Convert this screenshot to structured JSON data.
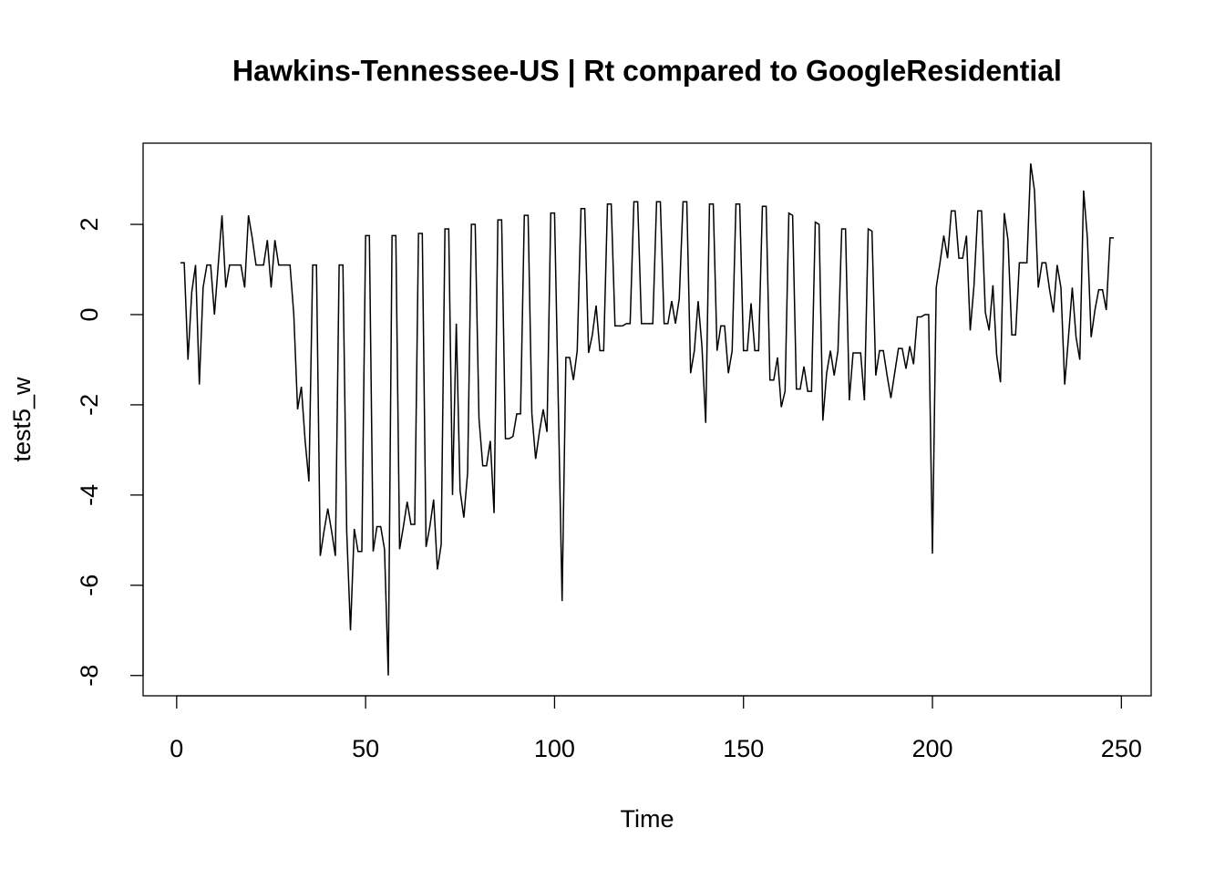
{
  "chart_data": {
    "type": "line",
    "title": "Hawkins-Tennessee-US | Rt compared to GoogleResidential",
    "x_label": "Time",
    "y_label": "test5_w",
    "color": "#000000",
    "xlim": [
      -8.88,
      257.88
    ],
    "ylim": [
      -8.45,
      3.8
    ],
    "xticks": [
      0,
      50,
      100,
      150,
      200,
      250
    ],
    "yticks": [
      -8,
      -6,
      -4,
      -2,
      0,
      2
    ],
    "x": [
      1,
      2,
      3,
      4,
      5,
      6,
      7,
      8,
      9,
      10,
      11,
      12,
      13,
      14,
      15,
      16,
      17,
      18,
      19,
      20,
      21,
      22,
      23,
      24,
      25,
      26,
      27,
      28,
      29,
      30,
      31,
      32,
      33,
      34,
      35,
      36,
      37,
      38,
      39,
      40,
      41,
      42,
      43,
      44,
      45,
      46,
      47,
      48,
      49,
      50,
      51,
      52,
      53,
      54,
      55,
      56,
      57,
      58,
      59,
      60,
      61,
      62,
      63,
      64,
      65,
      66,
      67,
      68,
      69,
      70,
      71,
      72,
      73,
      74,
      75,
      76,
      77,
      78,
      79,
      80,
      81,
      82,
      83,
      84,
      85,
      86,
      87,
      88,
      89,
      90,
      91,
      92,
      93,
      94,
      95,
      96,
      97,
      98,
      99,
      100,
      101,
      102,
      103,
      104,
      105,
      106,
      107,
      108,
      109,
      110,
      111,
      112,
      113,
      114,
      115,
      116,
      117,
      118,
      119,
      120,
      121,
      122,
      123,
      124,
      125,
      126,
      127,
      128,
      129,
      130,
      131,
      132,
      133,
      134,
      135,
      136,
      137,
      138,
      139,
      140,
      141,
      142,
      143,
      144,
      145,
      146,
      147,
      148,
      149,
      150,
      151,
      152,
      153,
      154,
      155,
      156,
      157,
      158,
      159,
      160,
      161,
      162,
      163,
      164,
      165,
      166,
      167,
      168,
      169,
      170,
      171,
      172,
      173,
      174,
      175,
      176,
      177,
      178,
      179,
      180,
      181,
      182,
      183,
      184,
      185,
      186,
      187,
      188,
      189,
      190,
      191,
      192,
      193,
      194,
      195,
      196,
      197,
      198,
      199,
      200,
      201,
      202,
      203,
      204,
      205,
      206,
      207,
      208,
      209,
      210,
      211,
      212,
      213,
      214,
      215,
      216,
      217,
      218,
      219,
      220,
      221,
      222,
      223,
      224,
      225,
      226,
      227,
      228,
      229,
      230,
      231,
      232,
      233,
      234,
      235,
      236,
      237,
      238,
      239,
      240,
      241,
      242,
      243,
      244,
      245,
      246,
      247,
      248
    ],
    "values": [
      1.15,
      1.15,
      -1.0,
      0.5,
      1.1,
      -1.55,
      0.6,
      1.1,
      1.1,
      0.0,
      1.1,
      2.2,
      0.6,
      1.1,
      1.1,
      1.1,
      1.1,
      0.6,
      2.2,
      1.7,
      1.1,
      1.1,
      1.1,
      1.65,
      0.6,
      1.65,
      1.1,
      1.1,
      1.1,
      1.1,
      0.0,
      -2.1,
      -1.6,
      -2.8,
      -3.7,
      1.1,
      1.1,
      -5.35,
      -4.8,
      -4.3,
      -4.8,
      -5.35,
      1.1,
      1.1,
      -4.8,
      -7.0,
      -4.75,
      -5.25,
      -5.25,
      1.75,
      1.75,
      -5.25,
      -4.7,
      -4.7,
      -5.2,
      -8.0,
      1.75,
      1.75,
      -5.2,
      -4.7,
      -4.15,
      -4.65,
      -4.65,
      1.8,
      1.8,
      -5.15,
      -4.7,
      -4.1,
      -5.65,
      -5.1,
      1.9,
      1.9,
      -4.0,
      -0.2,
      -3.9,
      -4.5,
      -3.5,
      2.0,
      2.0,
      -2.3,
      -3.35,
      -3.35,
      -2.8,
      -4.4,
      2.1,
      2.1,
      -2.75,
      -2.75,
      -2.7,
      -2.2,
      -2.2,
      2.2,
      2.2,
      -2.2,
      -3.2,
      -2.6,
      -2.1,
      -2.6,
      2.25,
      2.25,
      -2.0,
      -6.35,
      -0.95,
      -0.95,
      -1.45,
      -0.8,
      2.35,
      2.35,
      -0.85,
      -0.45,
      0.2,
      -0.8,
      -0.8,
      2.45,
      2.45,
      -0.25,
      -0.25,
      -0.25,
      -0.2,
      -0.2,
      2.5,
      2.5,
      -0.2,
      -0.2,
      -0.2,
      -0.2,
      2.5,
      2.5,
      -0.2,
      -0.2,
      0.3,
      -0.2,
      0.35,
      2.5,
      2.5,
      -1.3,
      -0.8,
      0.3,
      -0.7,
      -2.4,
      2.45,
      2.45,
      -0.8,
      -0.25,
      -0.25,
      -1.3,
      -0.8,
      2.45,
      2.45,
      -0.8,
      -0.8,
      0.25,
      -0.8,
      -0.8,
      2.4,
      2.4,
      -1.45,
      -1.45,
      -0.95,
      -2.05,
      -1.7,
      2.25,
      2.2,
      -1.65,
      -1.65,
      -1.15,
      -1.7,
      -1.7,
      2.05,
      2.0,
      -2.35,
      -1.3,
      -0.8,
      -1.35,
      -0.8,
      1.9,
      1.9,
      -1.9,
      -0.85,
      -0.85,
      -0.85,
      -1.9,
      1.9,
      1.85,
      -1.35,
      -0.8,
      -0.8,
      -1.35,
      -1.85,
      -1.3,
      -0.75,
      -0.75,
      -1.2,
      -0.7,
      -1.1,
      -0.05,
      -0.05,
      0.0,
      0.0,
      -5.3,
      0.6,
      1.15,
      1.75,
      1.25,
      2.3,
      2.3,
      1.25,
      1.25,
      1.75,
      -0.35,
      0.65,
      2.3,
      2.3,
      0.05,
      -0.35,
      0.65,
      -0.9,
      -1.5,
      2.25,
      1.65,
      -0.45,
      -0.45,
      1.15,
      1.15,
      1.15,
      3.35,
      2.75,
      0.6,
      1.15,
      1.15,
      0.55,
      0.05,
      1.1,
      0.6,
      -1.55,
      -0.5,
      0.6,
      -0.5,
      -1.0,
      2.75,
      1.7,
      -0.5,
      0.1,
      0.55,
      0.55,
      0.1,
      1.7,
      1.7
    ]
  }
}
